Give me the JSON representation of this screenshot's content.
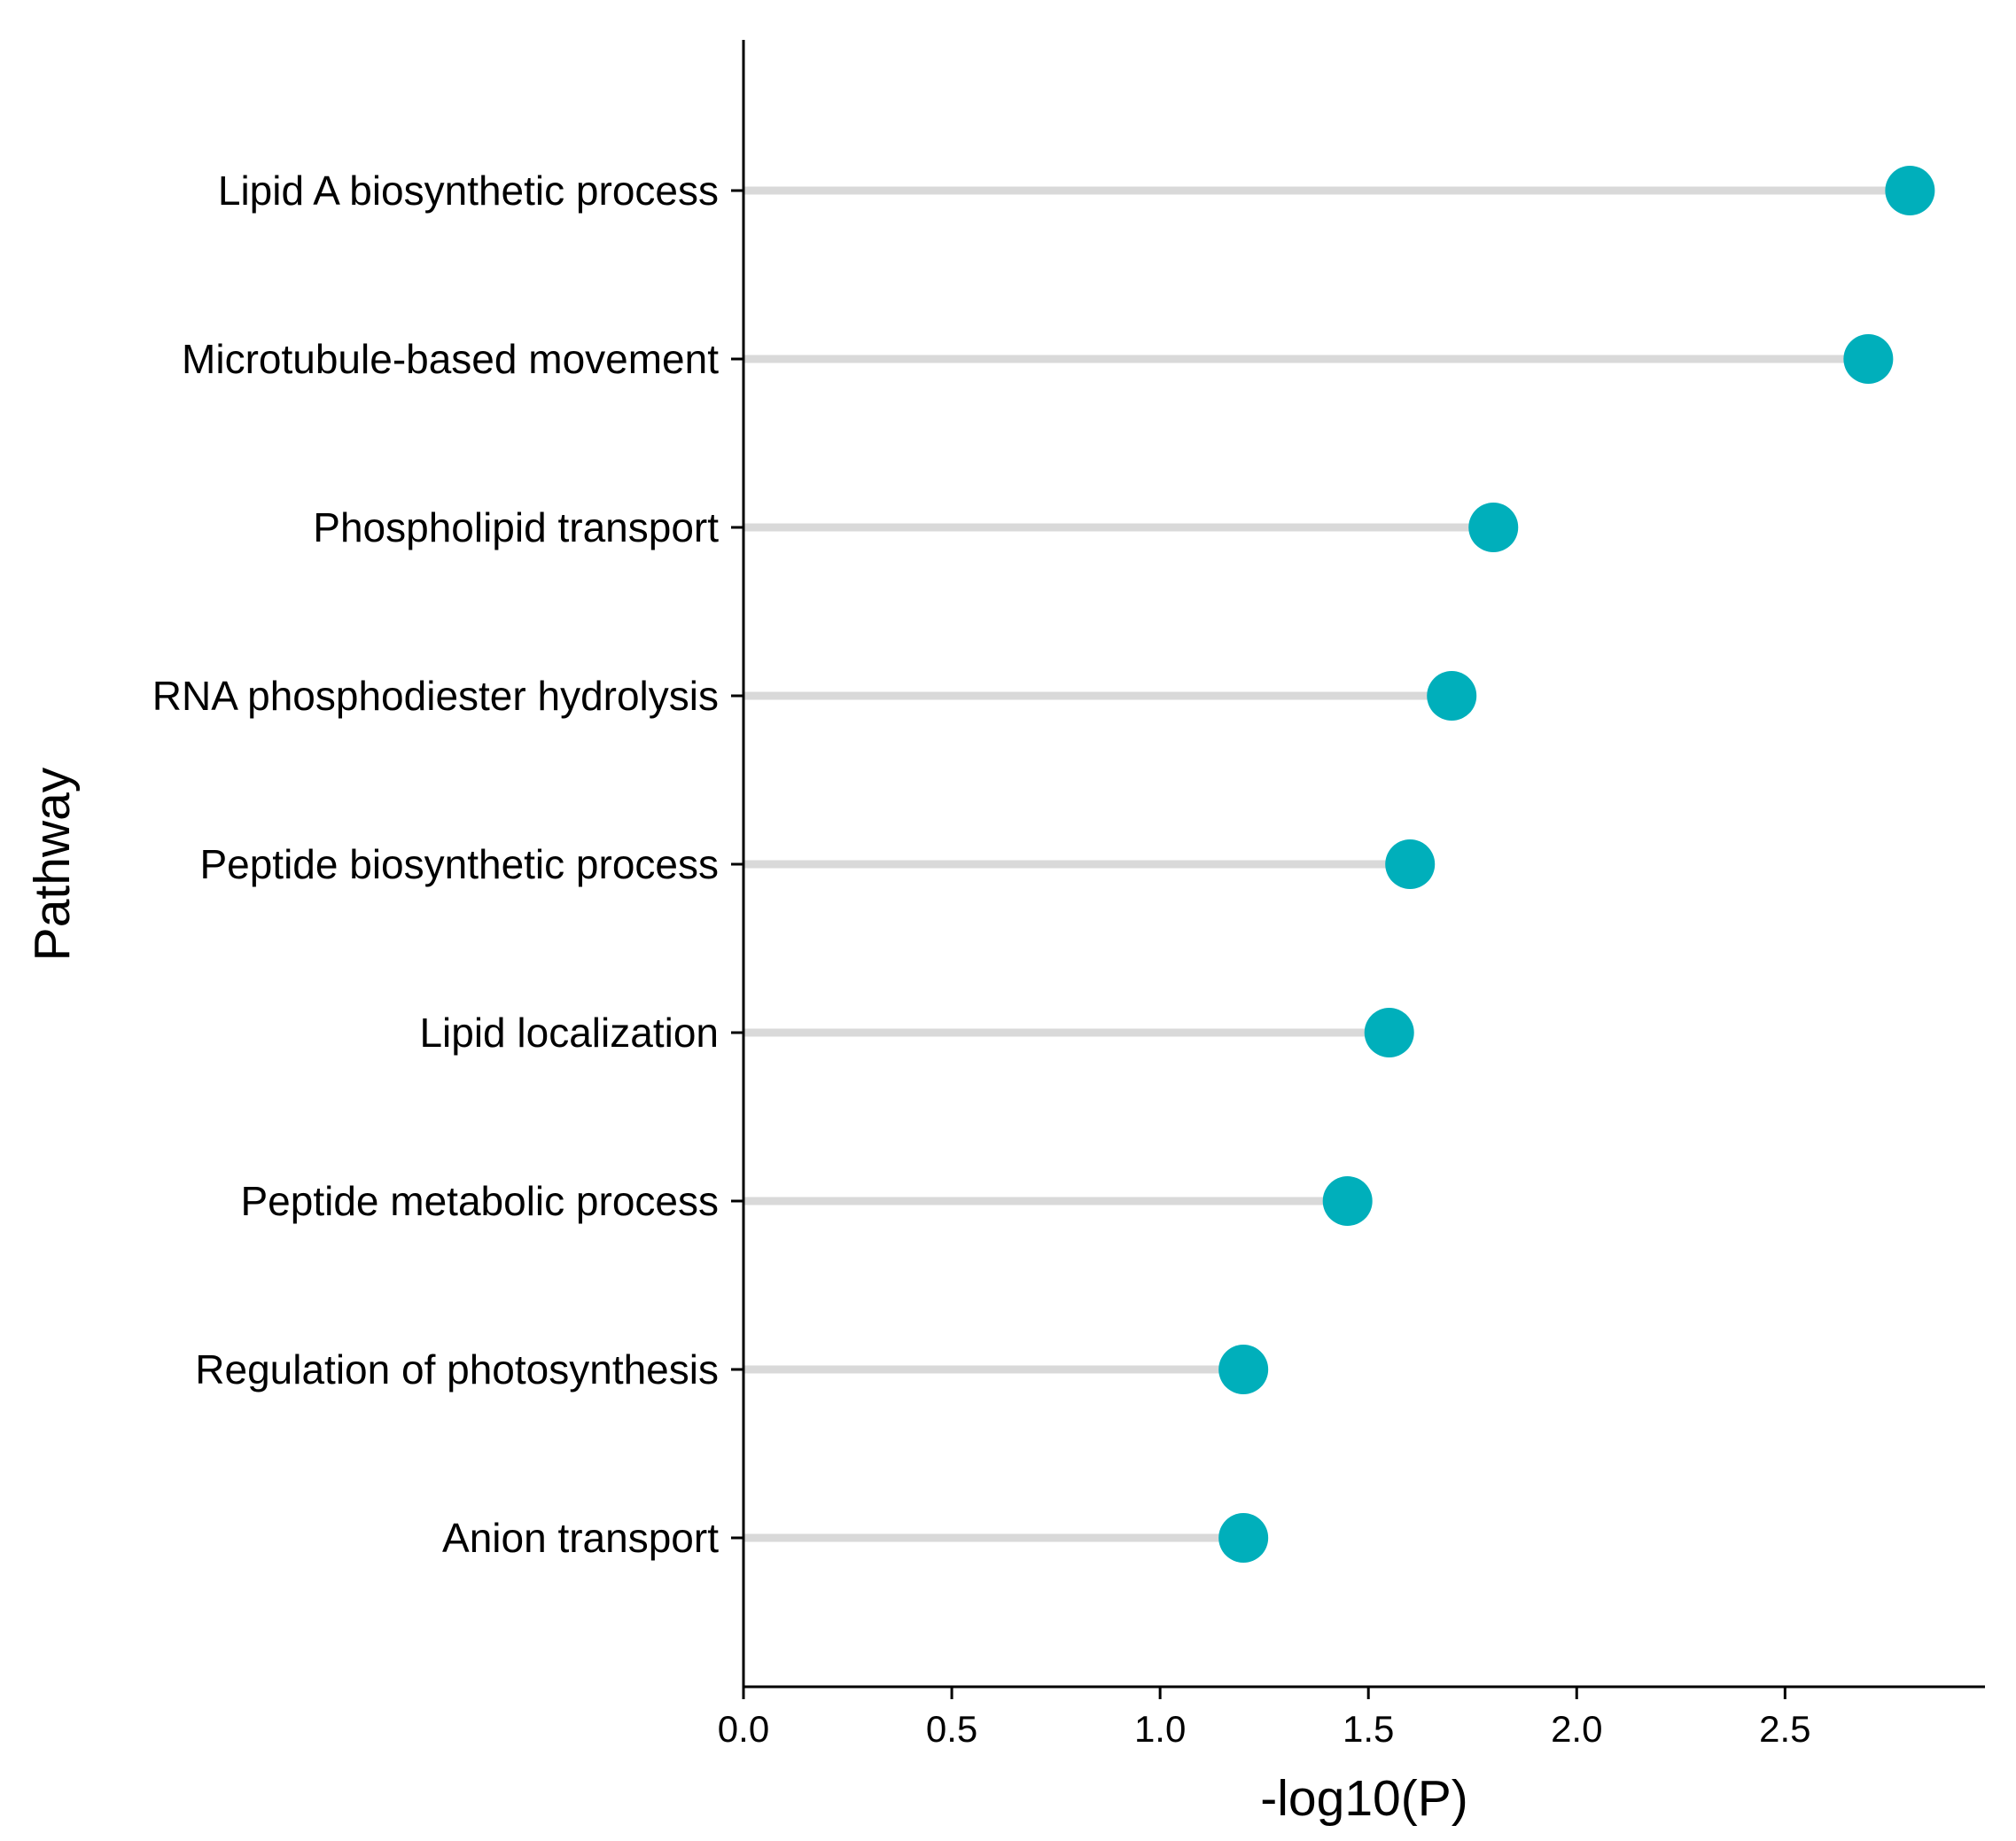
{
  "chart_data": {
    "type": "lollipop",
    "xlabel": "-log10(P)",
    "ylabel": "Pathway",
    "xlim": [
      0,
      2.98
    ],
    "x_ticks": [
      "0.0",
      "0.5",
      "1.0",
      "1.5",
      "2.0",
      "2.5"
    ],
    "grid": false,
    "categories": [
      "Lipid A biosynthetic process",
      "Microtubule-based movement",
      "Phospholipid transport",
      "RNA phosphodiester hydrolysis",
      "Peptide biosynthetic process",
      "Lipid localization",
      "Peptide metabolic process",
      "Regulation of photosynthesis",
      "Anion transport"
    ],
    "values": [
      2.8,
      2.7,
      1.8,
      1.7,
      1.6,
      1.55,
      1.45,
      1.2,
      1.2
    ],
    "colors": {
      "point": "#00AFBB",
      "stem": "#D9D9D9",
      "axis": "#000000"
    }
  }
}
